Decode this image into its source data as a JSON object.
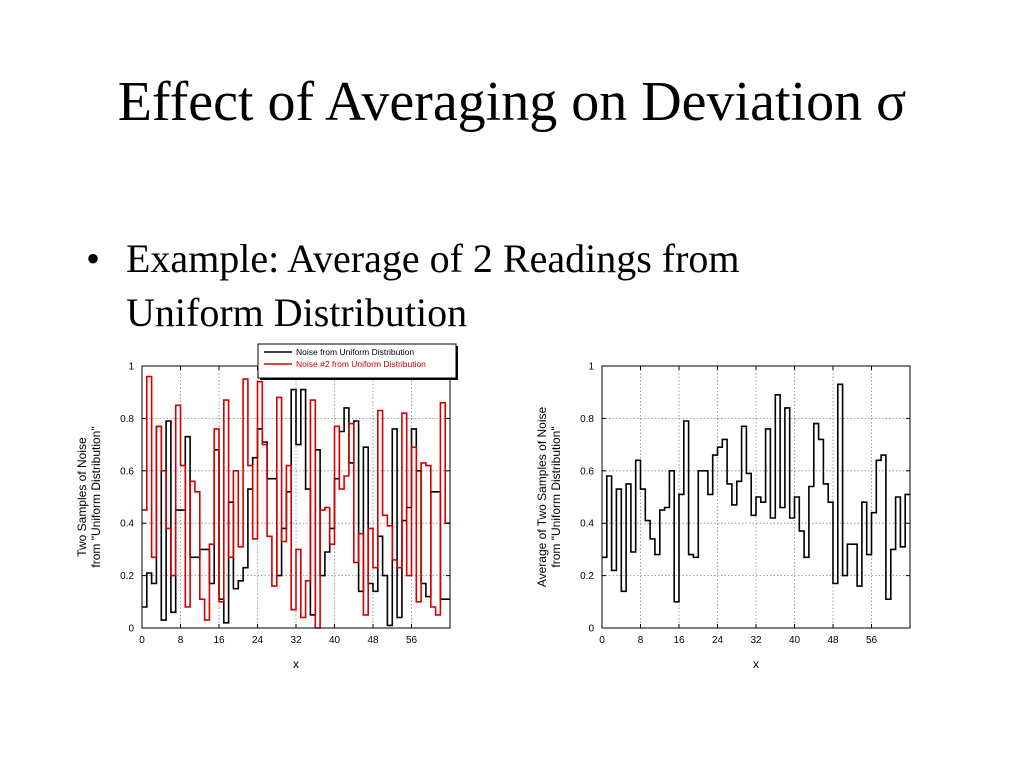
{
  "slide": {
    "title": "Effect of Averaging on Deviation σ",
    "bullets": [
      {
        "marker": "•",
        "text": "Example: Average of 2 Readings from Uniform Distribution"
      }
    ]
  },
  "colors": {
    "series1": "#000000",
    "series2": "#d40000",
    "grid": "#888888"
  },
  "chart_data": [
    {
      "type": "line",
      "step": true,
      "title": "",
      "xlabel": "x",
      "ylabel": [
        "Two Samples of Noise",
        "from \"Uniform Distribution\""
      ],
      "xlim": [
        0,
        64
      ],
      "ylim": [
        0,
        1
      ],
      "xticks": [
        0,
        8,
        16,
        24,
        32,
        40,
        48,
        56
      ],
      "yticks": [
        0,
        0.2,
        0.4,
        0.6,
        0.8,
        1
      ],
      "ytick_labels": [
        "0",
        "0.2",
        "0.4",
        "0.6",
        "0.8",
        "1"
      ],
      "grid": true,
      "legend": "top-right",
      "series": [
        {
          "name": "Noise from Uniform Distribution",
          "color": "#000000",
          "values": [
            0.08,
            0.21,
            0.17,
            0.77,
            0.03,
            0.79,
            0.06,
            0.45,
            0.45,
            0.73,
            0.27,
            0.27,
            0.3,
            0.3,
            0.17,
            0.68,
            0.11,
            0.02,
            0.48,
            0.15,
            0.18,
            0.23,
            0.53,
            0.65,
            0.76,
            0.71,
            0.57,
            0.57,
            0.2,
            0.38,
            0.52,
            0.91,
            0.7,
            0.91,
            0.53,
            0.05,
            0.68,
            0.2,
            0.29,
            0.38,
            0.57,
            0.75,
            0.84,
            0.63,
            0.79,
            0.14,
            0.69,
            0.17,
            0.14,
            0.35,
            0.2,
            0.01,
            0.76,
            0.04,
            0.41,
            0.46,
            0.76,
            0.6,
            0.17,
            0.12,
            0.52,
            0.52,
            0.11,
            0.11
          ]
        },
        {
          "name": "Noise #2 from Uniform Distribution",
          "color": "#d40000",
          "values": [
            0.45,
            0.96,
            0.27,
            0.77,
            0.6,
            0.38,
            0.2,
            0.85,
            0.62,
            0.08,
            0.56,
            0.52,
            0.11,
            0.03,
            0.32,
            0.76,
            0.1,
            0.87,
            0.27,
            0.6,
            0.31,
            0.95,
            0.62,
            0.34,
            0.94,
            0.7,
            0.35,
            0.16,
            0.88,
            0.33,
            0.62,
            0.07,
            0.3,
            0.04,
            0.18,
            0.87,
            0.0,
            0.45,
            0.46,
            0.32,
            0.77,
            0.53,
            0.58,
            0.78,
            0.25,
            0.36,
            0.05,
            0.38,
            0.23,
            0.83,
            0.43,
            0.39,
            0.26,
            0.23,
            0.82,
            0.2,
            0.69,
            0.1,
            0.63,
            0.62,
            0.08,
            0.05,
            0.86,
            0.4
          ]
        }
      ]
    },
    {
      "type": "line",
      "step": true,
      "title": "",
      "xlabel": "x",
      "ylabel": [
        "Average of Two Samples of Noise",
        "from \"Uniform Distribution\""
      ],
      "xlim": [
        0,
        64
      ],
      "ylim": [
        0,
        1
      ],
      "xticks": [
        0,
        8,
        16,
        24,
        32,
        40,
        48,
        56
      ],
      "yticks": [
        0,
        0.2,
        0.4,
        0.6,
        0.8,
        1
      ],
      "ytick_labels": [
        "0",
        "0.2",
        "0.4",
        "0.6",
        "0.8",
        "1"
      ],
      "grid": true,
      "legend": "",
      "series": [
        {
          "name": "",
          "color": "#000000",
          "values": [
            0.27,
            0.58,
            0.22,
            0.53,
            0.14,
            0.55,
            0.29,
            0.64,
            0.53,
            0.41,
            0.34,
            0.28,
            0.45,
            0.46,
            0.6,
            0.1,
            0.51,
            0.79,
            0.28,
            0.27,
            0.6,
            0.6,
            0.51,
            0.66,
            0.69,
            0.72,
            0.55,
            0.47,
            0.56,
            0.77,
            0.59,
            0.43,
            0.5,
            0.48,
            0.76,
            0.42,
            0.89,
            0.46,
            0.84,
            0.42,
            0.5,
            0.37,
            0.27,
            0.54,
            0.78,
            0.72,
            0.55,
            0.48,
            0.17,
            0.93,
            0.2,
            0.32,
            0.32,
            0.16,
            0.48,
            0.28,
            0.44,
            0.64,
            0.66,
            0.11,
            0.3,
            0.5,
            0.31,
            0.51
          ]
        }
      ]
    }
  ]
}
